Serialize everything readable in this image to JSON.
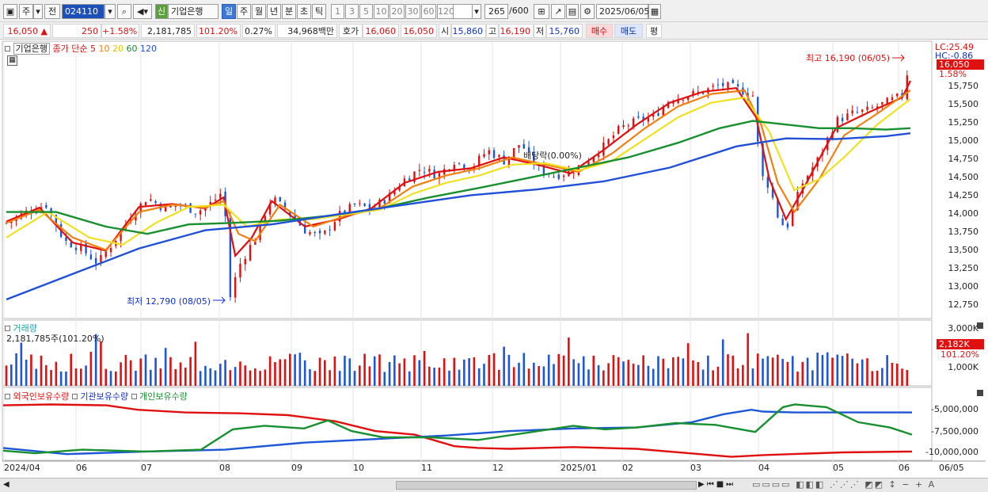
{
  "toolbar": {
    "type_label": "주",
    "prev_label": "전",
    "code_value": "024110",
    "badge_label": "신",
    "stock_name": "기업은행",
    "periods": [
      "일",
      "주",
      "월",
      "년",
      "분",
      "초",
      "틱"
    ],
    "active_period": "일",
    "intervals": [
      "1",
      "3",
      "5",
      "10",
      "20",
      "30",
      "60",
      "120"
    ],
    "count_value": "265",
    "count_max": "/600",
    "date_value": "2025/06/05"
  },
  "quote": {
    "price": "16,050",
    "change": "250",
    "change_pct": "+1.58%",
    "volume": "2,181,785",
    "vol_ratio": "101.20%",
    "turnover": "0.27%",
    "amount": "34,968백만",
    "ask_label": "호가",
    "ask": "16,060",
    "bid": "16,050",
    "open_label": "시",
    "open": "15,860",
    "high_label": "고",
    "high": "16,190",
    "low_label": "저",
    "low": "15,760",
    "buy_label": "매수",
    "sell_label": "매도",
    "flat_label": "평"
  },
  "legend": {
    "name": "기업은행",
    "ma_label": "종가 단순",
    "ma_periods": [
      "5",
      "10",
      "20",
      "60",
      "120"
    ],
    "vol_title": "거래량",
    "vol_value": "2,181,785주(101.20%)",
    "hold_foreign": "외국인보유수량",
    "hold_inst": "기관보유수량",
    "hold_indiv": "개인보유수량"
  },
  "colors": {
    "up": "#e01010",
    "down": "#1e56d8",
    "ma5": "#e01010",
    "ma10": "#f08010",
    "ma20": "#f0e020",
    "ma60": "#189030",
    "ma120": "#2050d8"
  },
  "annotations": {
    "high_label": "최고 16,190 (06/05)",
    "low_label": "최저 12,790 (08/05)",
    "dividend_label": "배당락(0.00%)",
    "lc": "LC:25.49",
    "hc": "HC:-0.86",
    "last_price": "16,050",
    "last_pct": "1.58%",
    "vol_last": "2,182K",
    "vol_pct": "101.20%"
  },
  "axes": {
    "price_ticks": [
      "15,750",
      "15,500",
      "15,250",
      "15,000",
      "14,750",
      "14,500",
      "14,250",
      "14,000",
      "13,750",
      "13,500",
      "13,250",
      "13,000",
      "12,750"
    ],
    "volume_ticks": [
      "3,000K",
      "1,000K"
    ],
    "holding_ticks": [
      "-5,000,000",
      "-7,500,000",
      "-10,000,000"
    ],
    "months": [
      "2024/04",
      "06",
      "07",
      "08",
      "09",
      "10",
      "11",
      "12",
      "2025/01",
      "02",
      "03",
      "04",
      "05",
      "06"
    ],
    "last_date": "06/05"
  },
  "chart_data": {
    "type": "line",
    "title": "기업은행",
    "x_range": [
      "2024/04",
      "2025/06/05"
    ],
    "ylim": [
      12700,
      16300
    ],
    "months": [
      "2024/04",
      "06",
      "07",
      "08",
      "09",
      "10",
      "11",
      "12",
      "2025/01",
      "02",
      "03",
      "04",
      "05",
      "06"
    ],
    "close_series": {
      "name": "종가",
      "points": [
        [
          0,
          13800
        ],
        [
          12,
          13950
        ],
        [
          24,
          14050
        ],
        [
          35,
          13550
        ],
        [
          45,
          13450
        ],
        [
          55,
          13250
        ],
        [
          65,
          13550
        ],
        [
          75,
          13900
        ],
        [
          85,
          14150
        ],
        [
          95,
          14000
        ],
        [
          105,
          14050
        ],
        [
          115,
          13950
        ],
        [
          125,
          14100
        ],
        [
          131,
          14250
        ],
        [
          135,
          12790
        ],
        [
          140,
          13200
        ],
        [
          150,
          13600
        ],
        [
          160,
          14150
        ],
        [
          170,
          13950
        ],
        [
          180,
          13700
        ],
        [
          190,
          13600
        ],
        [
          200,
          13900
        ],
        [
          210,
          14050
        ],
        [
          220,
          14000
        ],
        [
          230,
          14150
        ],
        [
          240,
          14400
        ],
        [
          250,
          14550
        ],
        [
          260,
          14450
        ],
        [
          270,
          14650
        ],
        [
          280,
          14550
        ],
        [
          290,
          14800
        ],
        [
          300,
          14650
        ],
        [
          310,
          14900
        ],
        [
          320,
          14550
        ],
        [
          330,
          14450
        ],
        [
          340,
          14500
        ],
        [
          350,
          14650
        ],
        [
          360,
          14850
        ],
        [
          370,
          15100
        ],
        [
          380,
          15200
        ],
        [
          390,
          15250
        ],
        [
          400,
          15500
        ],
        [
          410,
          15550
        ],
        [
          420,
          15600
        ],
        [
          430,
          15700
        ],
        [
          440,
          15650
        ],
        [
          450,
          15550
        ],
        [
          455,
          14450
        ],
        [
          460,
          14300
        ],
        [
          465,
          13900
        ],
        [
          470,
          13700
        ],
        [
          475,
          14050
        ],
        [
          480,
          14350
        ],
        [
          490,
          14700
        ],
        [
          500,
          15200
        ],
        [
          510,
          15300
        ],
        [
          520,
          15350
        ],
        [
          530,
          15450
        ],
        [
          540,
          15550
        ],
        [
          545,
          16050
        ]
      ]
    },
    "ma": [
      {
        "name": "5",
        "points": [
          [
            0,
            13820
          ],
          [
            20,
            14010
          ],
          [
            40,
            13530
          ],
          [
            60,
            13420
          ],
          [
            80,
            14020
          ],
          [
            100,
            14060
          ],
          [
            120,
            14000
          ],
          [
            131,
            14150
          ],
          [
            138,
            13350
          ],
          [
            148,
            13600
          ],
          [
            160,
            14100
          ],
          [
            180,
            13750
          ],
          [
            200,
            13850
          ],
          [
            220,
            14000
          ],
          [
            240,
            14350
          ],
          [
            260,
            14500
          ],
          [
            280,
            14550
          ],
          [
            300,
            14700
          ],
          [
            320,
            14600
          ],
          [
            340,
            14480
          ],
          [
            360,
            14800
          ],
          [
            380,
            15150
          ],
          [
            400,
            15450
          ],
          [
            420,
            15600
          ],
          [
            440,
            15650
          ],
          [
            452,
            15250
          ],
          [
            460,
            14400
          ],
          [
            470,
            13850
          ],
          [
            480,
            14250
          ],
          [
            500,
            15100
          ],
          [
            520,
            15320
          ],
          [
            540,
            15520
          ],
          [
            545,
            15750
          ]
        ]
      },
      {
        "name": "10",
        "points": [
          [
            0,
            13800
          ],
          [
            20,
            13980
          ],
          [
            40,
            13600
          ],
          [
            60,
            13430
          ],
          [
            80,
            13950
          ],
          [
            100,
            14050
          ],
          [
            120,
            14010
          ],
          [
            131,
            14100
          ],
          [
            140,
            13650
          ],
          [
            150,
            13550
          ],
          [
            165,
            14050
          ],
          [
            185,
            13750
          ],
          [
            205,
            13900
          ],
          [
            225,
            14000
          ],
          [
            245,
            14300
          ],
          [
            265,
            14450
          ],
          [
            285,
            14550
          ],
          [
            305,
            14700
          ],
          [
            325,
            14600
          ],
          [
            345,
            14500
          ],
          [
            365,
            14750
          ],
          [
            385,
            15100
          ],
          [
            405,
            15400
          ],
          [
            425,
            15570
          ],
          [
            445,
            15620
          ],
          [
            455,
            15150
          ],
          [
            465,
            14350
          ],
          [
            475,
            13950
          ],
          [
            490,
            14400
          ],
          [
            505,
            15000
          ],
          [
            525,
            15300
          ],
          [
            545,
            15620
          ]
        ]
      },
      {
        "name": "20",
        "points": [
          [
            0,
            13600
          ],
          [
            25,
            13950
          ],
          [
            50,
            13600
          ],
          [
            70,
            13500
          ],
          [
            90,
            13800
          ],
          [
            110,
            14020
          ],
          [
            131,
            14050
          ],
          [
            145,
            13750
          ],
          [
            165,
            13850
          ],
          [
            185,
            13850
          ],
          [
            205,
            13920
          ],
          [
            225,
            13980
          ],
          [
            245,
            14200
          ],
          [
            265,
            14350
          ],
          [
            285,
            14450
          ],
          [
            305,
            14600
          ],
          [
            325,
            14620
          ],
          [
            345,
            14520
          ],
          [
            365,
            14650
          ],
          [
            385,
            14950
          ],
          [
            405,
            15250
          ],
          [
            425,
            15450
          ],
          [
            445,
            15520
          ],
          [
            460,
            15050
          ],
          [
            475,
            14250
          ],
          [
            490,
            14400
          ],
          [
            505,
            14700
          ],
          [
            525,
            15150
          ],
          [
            545,
            15500
          ]
        ]
      },
      {
        "name": "60",
        "points": [
          [
            0,
            13950
          ],
          [
            30,
            13950
          ],
          [
            60,
            13750
          ],
          [
            85,
            13650
          ],
          [
            110,
            13780
          ],
          [
            135,
            13800
          ],
          [
            165,
            13830
          ],
          [
            195,
            13900
          ],
          [
            225,
            14000
          ],
          [
            255,
            14150
          ],
          [
            285,
            14280
          ],
          [
            315,
            14420
          ],
          [
            345,
            14560
          ],
          [
            375,
            14700
          ],
          [
            405,
            14900
          ],
          [
            430,
            15100
          ],
          [
            450,
            15200
          ],
          [
            470,
            15150
          ],
          [
            490,
            15100
          ],
          [
            510,
            15100
          ],
          [
            530,
            15080
          ],
          [
            545,
            15100
          ]
        ]
      },
      {
        "name": "120",
        "points": [
          [
            0,
            12750
          ],
          [
            40,
            13100
          ],
          [
            80,
            13450
          ],
          [
            120,
            13700
          ],
          [
            160,
            13780
          ],
          [
            200,
            13920
          ],
          [
            240,
            14050
          ],
          [
            280,
            14180
          ],
          [
            320,
            14260
          ],
          [
            360,
            14370
          ],
          [
            400,
            14560
          ],
          [
            440,
            14850
          ],
          [
            470,
            14960
          ],
          [
            500,
            14950
          ],
          [
            530,
            14990
          ],
          [
            545,
            15030
          ]
        ]
      }
    ]
  }
}
